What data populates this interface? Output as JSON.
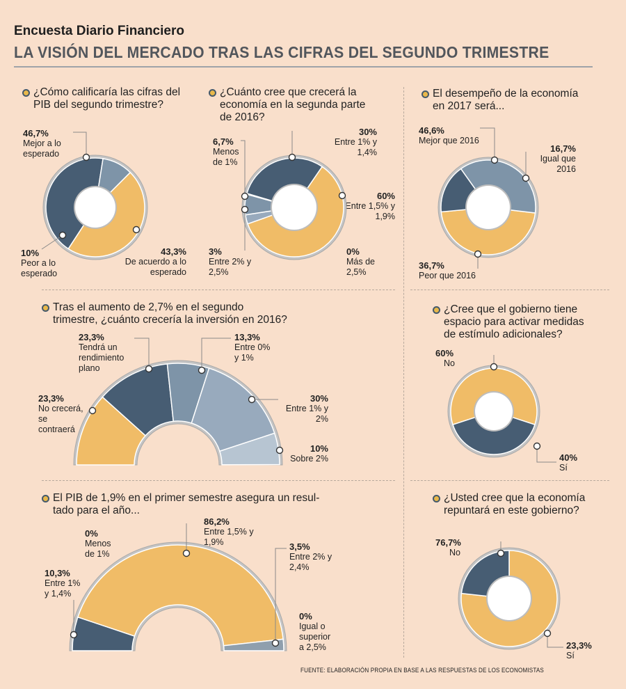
{
  "header": {
    "kicker": "Encuesta Diario Financiero",
    "title": "LA VISIÓN DEL MERCADO TRAS LAS CIFRAS DEL SEGUNDO TRIMESTRE"
  },
  "source": "FUENTE: ELABORACIÓN PROPIA EN BASE A LAS RESPUESTAS DE LOS ECONOMISTAS",
  "colors": {
    "background": "#f9dfcb",
    "yellow": "#f0bc67",
    "navy": "#475d73",
    "slate": "#7e94a8",
    "light": "#98aabd",
    "pale": "#b7c5d2",
    "grey": "#8f9fad"
  },
  "chart_data": [
    {
      "type": "pie",
      "question": "¿Cómo calificaría las cifras del PIB del segundo trimestre?",
      "slices": [
        {
          "value_label": "46,7%",
          "label": "Mejor a lo esperado",
          "value": 46.7,
          "color": "#f0bc67"
        },
        {
          "value_label": "43,3%",
          "label": "De acuerdo a lo esperado",
          "value": 43.3,
          "color": "#475d73"
        },
        {
          "value_label": "10%",
          "label": "Peor a lo esperado",
          "value": 10,
          "color": "#7e94a8"
        }
      ]
    },
    {
      "type": "pie",
      "question": "¿Cuánto cree que crecerá la economía en la segunda parte de 2016?",
      "slices": [
        {
          "value_label": "30%",
          "label": "Entre 1% y 1,4%",
          "value": 30,
          "color": "#475d73"
        },
        {
          "value_label": "60%",
          "label": "Entre 1,5% y 1,9%",
          "value": 60,
          "color": "#f0bc67"
        },
        {
          "value_label": "0%",
          "label": "Más de 2,5%",
          "value": 0,
          "color": "#f0bc67"
        },
        {
          "value_label": "3%",
          "label": "Entre 2% y 2,5%",
          "value": 3,
          "color": "#98aabd"
        },
        {
          "value_label": "6,7%",
          "label": "Menos de 1%",
          "value": 6.7,
          "color": "#7e94a8"
        }
      ]
    },
    {
      "type": "pie",
      "question": "El desempeño de la economía en 2017 será...",
      "slices": [
        {
          "value_label": "46,6%",
          "label": "Mejor que 2016",
          "value": 46.6,
          "color": "#f0bc67"
        },
        {
          "value_label": "16,7%",
          "label": "Igual que 2016",
          "value": 16.7,
          "color": "#475d73"
        },
        {
          "value_label": "36,7%",
          "label": "Peor que 2016",
          "value": 36.7,
          "color": "#7e94a8"
        }
      ]
    },
    {
      "type": "pie",
      "question": "Tras el aumento de 2,7% en el segundo trimestre, ¿cuánto crecería la inversión en 2016?",
      "slices": [
        {
          "value_label": "23,3%",
          "label": "No crecerá, se contraerá",
          "value": 23.3,
          "color": "#f0bc67"
        },
        {
          "value_label": "23,3%",
          "label": "Tendrá un rendimiento plano",
          "value": 23.3,
          "color": "#475d73"
        },
        {
          "value_label": "13,3%",
          "label": "Entre 0% y 1%",
          "value": 13.3,
          "color": "#7e94a8"
        },
        {
          "value_label": "30%",
          "label": "Entre 1% y 2%",
          "value": 30,
          "color": "#98aabd"
        },
        {
          "value_label": "10%",
          "label": "Sobre 2%",
          "value": 10,
          "color": "#b7c5d2"
        }
      ]
    },
    {
      "type": "pie",
      "question": "¿Cree que el gobierno tiene espacio para activar medidas de estímulo adicionales?",
      "slices": [
        {
          "value_label": "60%",
          "label": "No",
          "value": 60,
          "color": "#f0bc67"
        },
        {
          "value_label": "40%",
          "label": "Sí",
          "value": 40,
          "color": "#475d73"
        }
      ]
    },
    {
      "type": "pie",
      "question": "El PIB de 1,9% en el primer semestre asegura un resultado para el año...",
      "question_lines": [
        "El PIB de 1,9% en el primer semestre asegura un resul-",
        "tado para el año..."
      ],
      "slices": [
        {
          "value_label": "0%",
          "label": "Menos de 1%",
          "value": 0,
          "color": "#7e94a8"
        },
        {
          "value_label": "10,3%",
          "label": "Entre 1% y 1,4%",
          "value": 10.3,
          "color": "#475d73"
        },
        {
          "value_label": "86,2%",
          "label": "Entre 1,5% y 1,9%",
          "value": 86.2,
          "color": "#f0bc67"
        },
        {
          "value_label": "3,5%",
          "label": "Entre 2% y 2,4%",
          "value": 3.5,
          "color": "#8f9fad"
        },
        {
          "value_label": "0%",
          "label": "Igual o superior a 2,5%",
          "value": 0,
          "color": "#b7c5d2"
        }
      ]
    },
    {
      "type": "pie",
      "question": "¿Usted cree que la economía repuntará en este gobierno?",
      "slices": [
        {
          "value_label": "76,7%",
          "label": "No",
          "value": 76.7,
          "color": "#f0bc67"
        },
        {
          "value_label": "23,3%",
          "label": "Sí",
          "value": 23.3,
          "color": "#475d73"
        }
      ]
    }
  ]
}
